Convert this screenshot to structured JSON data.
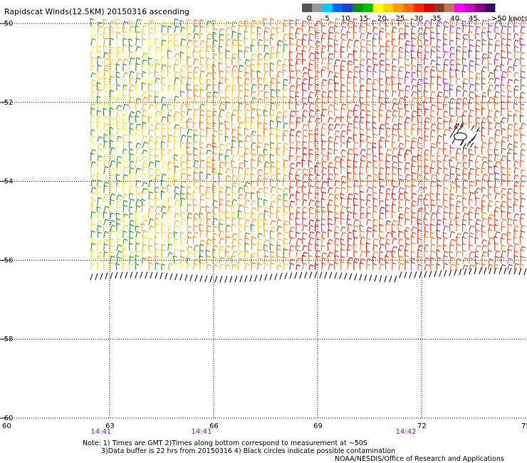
{
  "title": "Rapidscat Winds(12.5KM) 20150316 ascending",
  "legend": {
    "labels": [
      "0",
      "5",
      "10",
      "15",
      "20",
      "25",
      "30",
      "35",
      "40",
      "45",
      ">50 knots"
    ],
    "colors": [
      "#555555",
      "#9a9a9a",
      "#00ccff",
      "#0066ff",
      "#1f3fcf",
      "#109010",
      "#00c000",
      "#ffff00",
      "#ffd000",
      "#ff9900",
      "#ff6600",
      "#ff2200",
      "#dd0000",
      "#8b3a2a",
      "#bb7755",
      "#ff00ff",
      "#cc00cc",
      "#880088",
      "#3a0060"
    ]
  },
  "chart_data": {
    "type": "map",
    "x_axis": {
      "ticks": [
        "60",
        "63",
        "66",
        "69",
        "72",
        "75"
      ],
      "range": [
        60,
        75
      ]
    },
    "y_axis": {
      "ticks": [
        "-50",
        "-52",
        "-54",
        "-56",
        "-58",
        "-60"
      ],
      "range": [
        -60,
        -50
      ]
    },
    "grid": "dotted",
    "swath": {
      "lon": [
        62.4,
        75
      ],
      "lat": [
        -56.4,
        -50
      ]
    },
    "times": [
      {
        "label": "14:41",
        "lon": 62.7
      },
      {
        "label": "14:41",
        "lon": 65.6
      },
      {
        "label": "14:42",
        "lon": 71.5
      }
    ]
  },
  "notes": [
    "Note: 1) Times are GMT 2)Times along bottom correspond to measurement at ~50S",
    "3)Data buffer is 22 hrs from 20150316 4) Black circles indicate possible contamination",
    "NOAA/NESDIS/Office of Research and Applications"
  ]
}
